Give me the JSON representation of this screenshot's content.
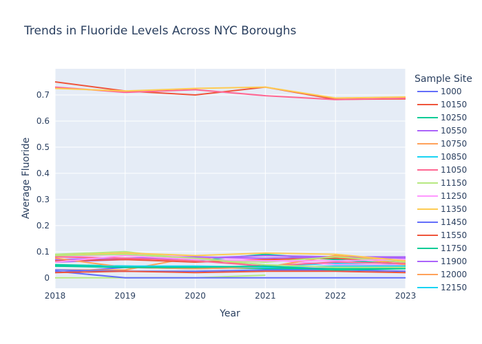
{
  "chart_data": {
    "type": "line",
    "title": "Trends in Fluoride Levels Across NYC Boroughs",
    "xlabel": "Year",
    "ylabel": "Average Fluoride",
    "legend_title": "Sample Site",
    "x": [
      2018,
      2019,
      2020,
      2021,
      2022,
      2023
    ],
    "xlim": [
      2018,
      2023
    ],
    "ylim": [
      -0.04,
      0.8
    ],
    "yticks": [
      0,
      0.1,
      0.2,
      0.3,
      0.4,
      0.5,
      0.6,
      0.7
    ],
    "ytick_labels": [
      "0",
      "0.1",
      "0.2",
      "0.3",
      "0.4",
      "0.5",
      "0.6",
      "0.7"
    ],
    "xtick_labels": [
      "2018",
      "2019",
      "2020",
      "2021",
      "2022",
      "2023"
    ],
    "grid": true,
    "legend_position": "right",
    "series": [
      {
        "name": "1000",
        "color": "#636efa",
        "values": [
          0.02,
          0.04,
          0.035,
          0.04,
          0.035,
          0.04
        ]
      },
      {
        "name": "10150",
        "color": "#EF553B",
        "values": [
          0.75,
          0.715,
          0.7,
          0.73,
          0.683,
          0.685
        ]
      },
      {
        "name": "10250",
        "color": "#00cc96",
        "values": [
          0.08,
          0.095,
          0.065,
          0.09,
          0.07,
          0.05
        ]
      },
      {
        "name": "10550",
        "color": "#ab63fa",
        "values": [
          0.06,
          0.07,
          0.075,
          0.085,
          0.08,
          0.075
        ]
      },
      {
        "name": "10750",
        "color": "#FFA15A",
        "values": [
          0.03,
          0.03,
          0.08,
          0.04,
          0.085,
          0.06
        ]
      },
      {
        "name": "10850",
        "color": "#19d3f3",
        "values": [
          0.045,
          0.045,
          0.04,
          0.045,
          0.055,
          0.045
        ]
      },
      {
        "name": "11050",
        "color": "#FF6692",
        "values": [
          0.73,
          0.71,
          0.72,
          0.697,
          0.682,
          0.687
        ]
      },
      {
        "name": "11150",
        "color": "#B6E880",
        "values": [
          0.0,
          0.0,
          0.0,
          0.01,
          null,
          null
        ]
      },
      {
        "name": "11250",
        "color": "#FF97FF",
        "values": [
          0.08,
          0.09,
          0.08,
          0.07,
          0.05,
          0.05
        ]
      },
      {
        "name": "11350",
        "color": "#FECB52",
        "values": [
          0.725,
          0.715,
          0.725,
          0.73,
          0.688,
          0.692
        ]
      },
      {
        "name": "11450",
        "color": "#636efa",
        "values": [
          0.025,
          0.0,
          0.0,
          0.0,
          0.0,
          0.0
        ]
      },
      {
        "name": "11550",
        "color": "#EF553B",
        "values": [
          0.065,
          0.07,
          0.06,
          0.07,
          0.075,
          0.06
        ]
      },
      {
        "name": "11750",
        "color": "#00cc96",
        "values": [
          0.05,
          0.045,
          0.04,
          0.035,
          0.035,
          0.035
        ]
      },
      {
        "name": "11900",
        "color": "#ab63fa",
        "values": [
          0.07,
          0.075,
          0.08,
          0.075,
          0.08,
          0.08
        ]
      },
      {
        "name": "12000",
        "color": "#FFA15A",
        "values": [
          0.075,
          0.04,
          0.035,
          0.04,
          0.085,
          0.05
        ]
      },
      {
        "name": "12150",
        "color": "#19d3f3",
        "values": [
          0.045,
          0.045,
          0.045,
          0.04,
          0.045,
          0.045
        ]
      },
      {
        "name": "",
        "color": "#FF6692",
        "values": [
          0.08,
          0.075,
          0.065,
          0.045,
          0.06,
          0.055
        ]
      },
      {
        "name": "",
        "color": "#B6E880",
        "values": [
          0.09,
          0.1,
          0.07,
          0.06,
          0.08,
          0.06
        ]
      },
      {
        "name": "",
        "color": "#FF97FF",
        "values": [
          0.06,
          0.085,
          0.07,
          0.065,
          0.065,
          0.07
        ]
      },
      {
        "name": "",
        "color": "#FECB52",
        "values": [
          0.085,
          0.095,
          0.085,
          0.095,
          0.09,
          0.065
        ]
      },
      {
        "name": "",
        "color": "#636efa",
        "values": [
          0.03,
          0.025,
          0.025,
          0.03,
          0.03,
          0.025
        ]
      },
      {
        "name": "",
        "color": "#EF553B",
        "values": [
          0.02,
          0.025,
          0.02,
          0.025,
          0.025,
          0.02
        ]
      },
      {
        "name": "",
        "color": "#00cc96",
        "values": [
          0.045,
          0.04,
          0.04,
          0.045,
          0.03,
          0.035
        ]
      },
      {
        "name": "",
        "color": "#B6E880",
        "values": [
          0.085,
          0.09,
          0.075,
          0.05,
          0.04,
          0.04
        ]
      }
    ]
  }
}
